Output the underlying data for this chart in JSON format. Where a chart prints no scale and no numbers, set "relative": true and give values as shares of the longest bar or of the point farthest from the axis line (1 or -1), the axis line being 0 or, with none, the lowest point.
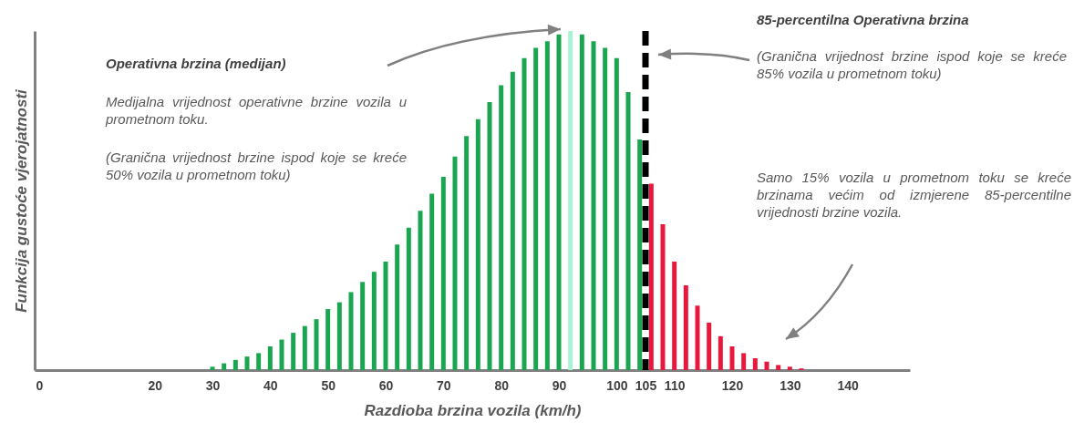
{
  "chart_data": {
    "type": "bar",
    "relative": true,
    "xlabel": "Razdioba brzina vozila (km/h)",
    "ylabel": "Funkcija gustoće vjerojatnosti",
    "x": [
      30,
      32,
      34,
      36,
      38,
      40,
      42,
      44,
      46,
      48,
      50,
      52,
      54,
      56,
      58,
      60,
      62,
      64,
      66,
      68,
      70,
      72,
      74,
      76,
      78,
      80,
      82,
      84,
      86,
      88,
      90,
      92,
      94,
      96,
      98,
      100,
      102,
      104,
      106,
      108,
      110,
      112,
      114,
      116,
      118,
      120,
      122,
      124,
      126,
      128,
      130,
      132
    ],
    "values": [
      0.01,
      0.02,
      0.03,
      0.04,
      0.05,
      0.07,
      0.09,
      0.11,
      0.13,
      0.15,
      0.18,
      0.2,
      0.23,
      0.26,
      0.29,
      0.32,
      0.37,
      0.42,
      0.47,
      0.52,
      0.57,
      0.63,
      0.69,
      0.74,
      0.79,
      0.84,
      0.88,
      0.92,
      0.95,
      0.97,
      0.99,
      1,
      0.99,
      0.97,
      0.95,
      0.92,
      0.82,
      0.68,
      0.55,
      0.43,
      0.32,
      0.25,
      0.19,
      0.14,
      0.1,
      0.07,
      0.05,
      0.035,
      0.025,
      0.015,
      0.01,
      0.005
    ],
    "colors": [
      "#1aa650",
      "#1aa650",
      "#1aa650",
      "#1aa650",
      "#1aa650",
      "#1aa650",
      "#1aa650",
      "#1aa650",
      "#1aa650",
      "#1aa650",
      "#1aa650",
      "#1aa650",
      "#1aa650",
      "#1aa650",
      "#1aa650",
      "#1aa650",
      "#1aa650",
      "#1aa650",
      "#1aa650",
      "#1aa650",
      "#1aa650",
      "#1aa650",
      "#1aa650",
      "#1aa650",
      "#1aa650",
      "#1aa650",
      "#1aa650",
      "#1aa650",
      "#1aa650",
      "#1aa650",
      "#1aa650",
      "#a8f2d6",
      "#1aa650",
      "#1aa650",
      "#1aa650",
      "#1aa650",
      "#1aa650",
      "#1aa650",
      "#e8173c",
      "#e8173c",
      "#e8173c",
      "#e8173c",
      "#e8173c",
      "#e8173c",
      "#e8173c",
      "#e8173c",
      "#e8173c",
      "#e8173c",
      "#e8173c",
      "#e8173c",
      "#e8173c",
      "#e8173c"
    ],
    "xlim": [
      0,
      150
    ],
    "xticks": [
      0,
      20,
      30,
      40,
      50,
      60,
      70,
      80,
      90,
      100,
      105,
      110,
      120,
      130,
      140
    ],
    "ref_lines": [
      {
        "axis": "x",
        "value": 105,
        "color": "#000000",
        "line_style": "dashed"
      }
    ],
    "annotations": [
      "Operativna brzina  (medijan)",
      "Medijalna vrijednost operativne brzine vozila u prometnom toku.",
      "(Granična vrijednost brzine ispod koje se kreće 50% vozila u prometnom toku)",
      "85-percentilna Operativna brzina",
      "(Granična vrijednost brzine ispod koje se kreće 85% vozila u prometnom toku)",
      "Samo 15% vozila u prometnom toku se kreće brzinama većim od izmjerene 85-percentilne vrijednosti brzine vozila."
    ]
  }
}
